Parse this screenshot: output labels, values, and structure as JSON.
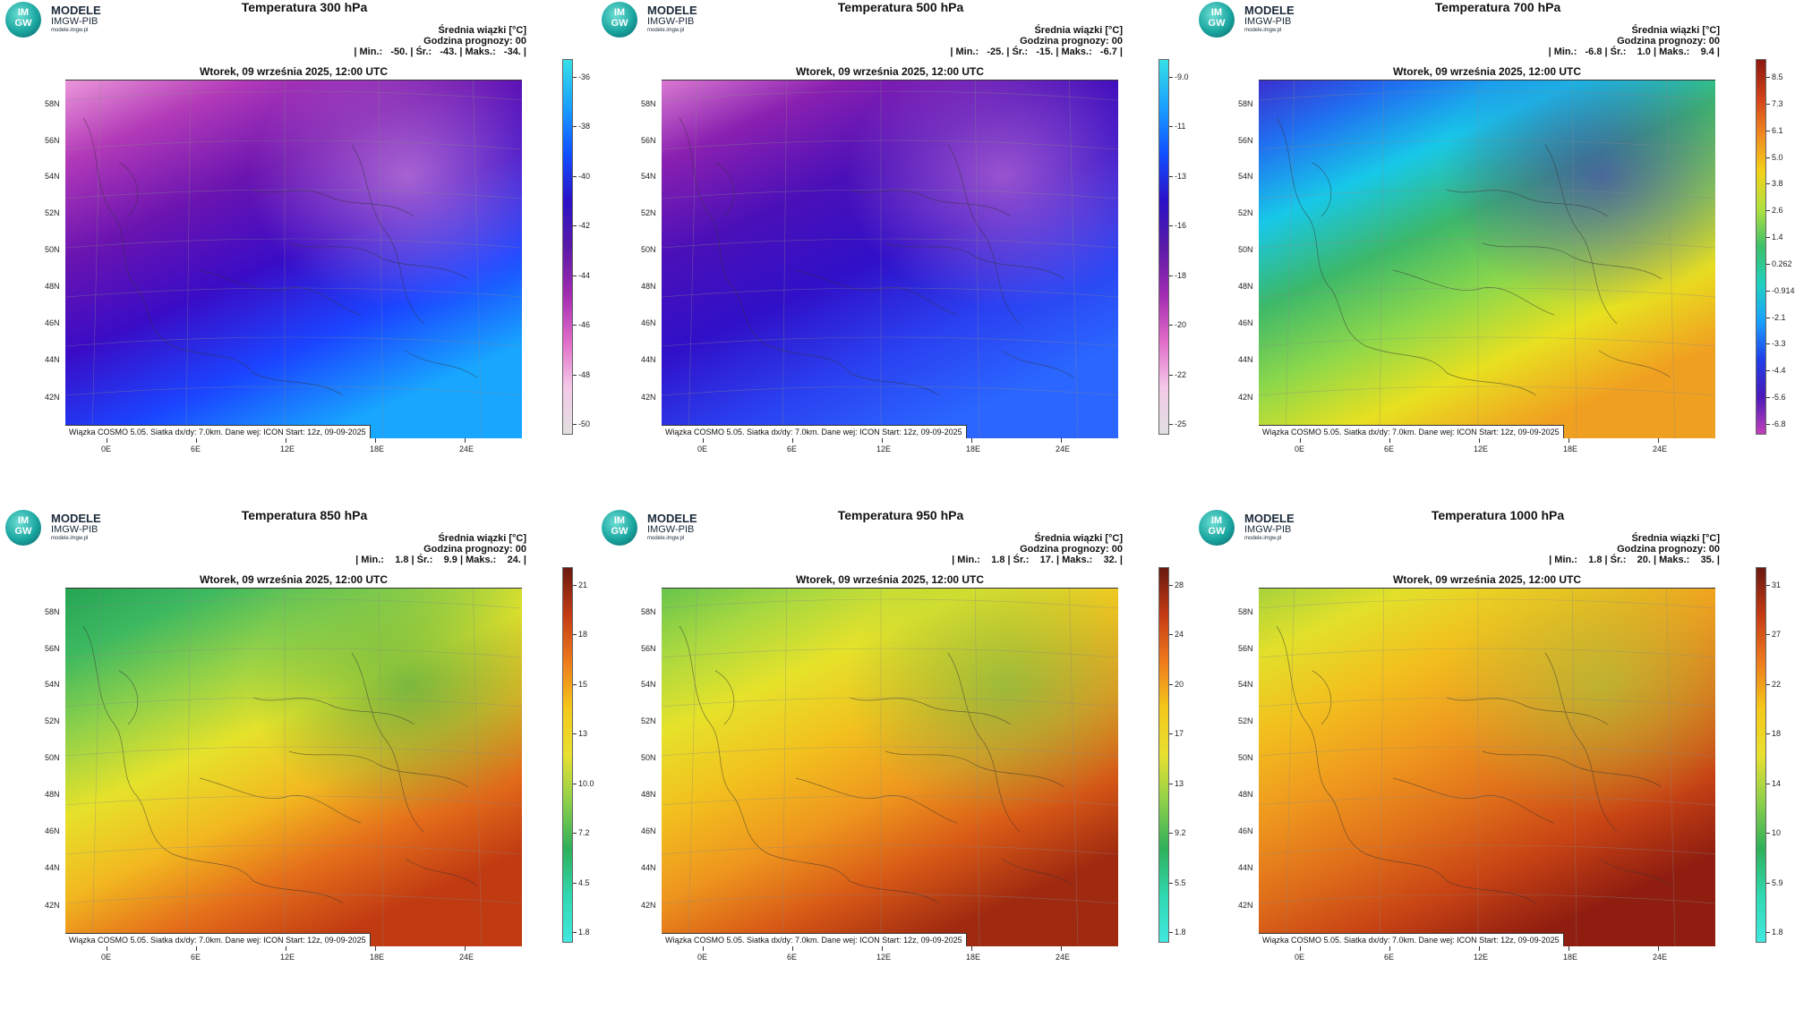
{
  "logo": {
    "line1": "IM",
    "line2": "GW",
    "name": "MODELE",
    "sub": "IMGW-PIB",
    "url": "modele.imgw.pl"
  },
  "info_line1": "Średnia wiązki [°C]",
  "info_line2": "Godzina prognozy: 00",
  "date_banner": "Wtorek, 09 września 2025, 12:00 UTC",
  "footer": "Wiązka COSMO 5.05. Siatka dx/dy: 7.0km. Dane wej: ICON Start: 12z, 09-09-2025",
  "lat_labels": [
    "58N",
    "56N",
    "54N",
    "52N",
    "50N",
    "48N",
    "46N",
    "44N",
    "42N"
  ],
  "lon_labels": [
    "0E",
    "6E",
    "12E",
    "18E",
    "24E"
  ],
  "panels": [
    {
      "title": "Temperatura 300 hPa",
      "stats": "| Min.:   -50. | Śr.:   -43. | Maks.:   -34. |",
      "cbar_ticks": [
        "-36",
        "-38",
        "-40",
        "-42",
        "-44",
        "-46",
        "-48",
        "-50"
      ],
      "cbar_colors": [
        "#35e0e6",
        "#1aa0ff",
        "#1050ff",
        "#2a12c8",
        "#5a1aa8",
        "#a02ab0",
        "#e06ac8",
        "#f4c8e8",
        "#e0e0e0"
      ],
      "map_colors": [
        "#f6a8e0",
        "#b23ab8",
        "#6a14b0",
        "#3a0cc6",
        "#1b44ff",
        "#18a6ff"
      ]
    },
    {
      "title": "Temperatura 500 hPa",
      "stats": "| Min.:   -25. | Śr.:   -15. | Maks.:   -6.7 |",
      "cbar_ticks": [
        "-9.0",
        "-11",
        "-13",
        "-16",
        "-18",
        "-20",
        "-22",
        "-25"
      ],
      "cbar_colors": [
        "#35e0e6",
        "#1aa0ff",
        "#1050ff",
        "#2a12c8",
        "#5a1aa8",
        "#a02ab0",
        "#e06ac8",
        "#f4c8e8",
        "#e0e0e0"
      ],
      "map_colors": [
        "#e88ad8",
        "#8a20b0",
        "#4a10b8",
        "#3010c8",
        "#2a40f0",
        "#2a66ff"
      ]
    },
    {
      "title": "Temperatura 700 hPa",
      "stats": "| Min.:   -6.8 | Śr.:    1.0 | Maks.:    9.4 |",
      "cbar_ticks": [
        "8.5",
        "7.3",
        "6.1",
        "5.0",
        "3.8",
        "2.6",
        "1.4",
        "0.262",
        "-0.914",
        "-2.1",
        "-3.3",
        "-4.4",
        "-5.6",
        "-6.8"
      ],
      "cbar_colors": [
        "#8a1a10",
        "#d2401a",
        "#f08a20",
        "#f2d21a",
        "#aee040",
        "#3cc06a",
        "#20d0c0",
        "#1aa0ff",
        "#2040e8",
        "#4a1ab8",
        "#c040b8"
      ],
      "map_colors": [
        "#4020c8",
        "#2070f0",
        "#18c8e8",
        "#3cb86a",
        "#8ed84a",
        "#e8e020",
        "#f0a020"
      ]
    },
    {
      "title": "Temperatura 850 hPa",
      "stats": "| Min.:    1.8 | Śr.:    9.9 | Maks.:    24. |",
      "cbar_ticks": [
        "21",
        "18",
        "15",
        "13",
        "10.0",
        "7.2",
        "4.5",
        "1.8"
      ],
      "cbar_colors": [
        "#6a1a10",
        "#c43a14",
        "#ee7a1c",
        "#f4c81a",
        "#e8e030",
        "#8ed04a",
        "#2fb05a",
        "#30d8b0",
        "#40e8e0"
      ],
      "map_colors": [
        "#1fa050",
        "#3cb860",
        "#8ed04a",
        "#e6e22a",
        "#f2b820",
        "#e46e1a",
        "#c03a12"
      ]
    },
    {
      "title": "Temperatura 950 hPa",
      "stats": "| Min.:    1.8 | Śr.:    17. | Maks.:    32. |",
      "cbar_ticks": [
        "28",
        "24",
        "20",
        "17",
        "13",
        "9.2",
        "5.5",
        "1.8"
      ],
      "cbar_colors": [
        "#6a1a10",
        "#c43a14",
        "#ee7a1c",
        "#f4c81a",
        "#e8e030",
        "#8ed04a",
        "#2fb05a",
        "#30d8b0",
        "#40e8e0"
      ],
      "map_colors": [
        "#58c050",
        "#a8d840",
        "#e6e22a",
        "#f2c01e",
        "#ee961e",
        "#d85a16",
        "#a02a10"
      ]
    },
    {
      "title": "Temperatura 1000 hPa",
      "stats": "| Min.:    1.8 | Śr.:    20. | Maks.:    35. |",
      "cbar_ticks": [
        "31",
        "27",
        "22",
        "18",
        "14",
        "10",
        "5.9",
        "1.8"
      ],
      "cbar_colors": [
        "#6a1a10",
        "#c43a14",
        "#ee7a1c",
        "#f4c81a",
        "#e8e030",
        "#8ed04a",
        "#2fb05a",
        "#30d8b0",
        "#40e8e0"
      ],
      "map_colors": [
        "#9ad040",
        "#e2e02a",
        "#f2c01e",
        "#ef9a1e",
        "#e0701a",
        "#c84414",
        "#901e10"
      ]
    }
  ]
}
